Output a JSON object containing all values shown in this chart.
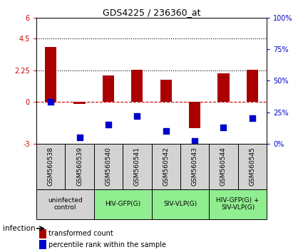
{
  "title": "GDS4225 / 236360_at",
  "samples": [
    "GSM560538",
    "GSM560539",
    "GSM560540",
    "GSM560541",
    "GSM560542",
    "GSM560543",
    "GSM560544",
    "GSM560545"
  ],
  "transformed_counts": [
    3.9,
    -0.15,
    1.85,
    2.3,
    1.55,
    -1.9,
    2.0,
    2.3
  ],
  "percentile_ranks_pct": [
    33,
    5,
    15,
    22,
    10,
    2,
    13,
    20
  ],
  "ylim_left": [
    -3,
    6
  ],
  "ylim_right": [
    0,
    100
  ],
  "yticks_left": [
    -3,
    0,
    2.25,
    4.5,
    6
  ],
  "yticks_right": [
    0,
    25,
    50,
    75,
    100
  ],
  "ytick_labels_left": [
    "-3",
    "0",
    "2.25",
    "4.5",
    "6"
  ],
  "ytick_labels_right": [
    "0%",
    "25%",
    "50%",
    "75%",
    "100%"
  ],
  "hlines": [
    0,
    2.25,
    4.5
  ],
  "hline_styles": [
    "dashed",
    "dotted",
    "dotted"
  ],
  "hline_colors": [
    "#cc0000",
    "#000000",
    "#000000"
  ],
  "bar_color": "#aa0000",
  "dot_color": "#0000cc",
  "dot_size": 30,
  "groups": [
    {
      "label": "uninfected\ncontrol",
      "start": 0,
      "end": 2,
      "color": "#d3d3d3"
    },
    {
      "label": "HIV-GFP(G)",
      "start": 2,
      "end": 4,
      "color": "#90ee90"
    },
    {
      "label": "SIV-VLP(G)",
      "start": 4,
      "end": 6,
      "color": "#90ee90"
    },
    {
      "label": "HIV-GFP(G) +\nSIV-VLP(G)",
      "start": 6,
      "end": 8,
      "color": "#90ee90"
    }
  ],
  "legend_red_label": "transformed count",
  "legend_blue_label": "percentile rank within the sample",
  "infection_label": "infection",
  "bar_width": 0.4,
  "title_fontsize": 9,
  "axis_fontsize": 7,
  "label_fontsize": 6.5,
  "legend_fontsize": 7
}
